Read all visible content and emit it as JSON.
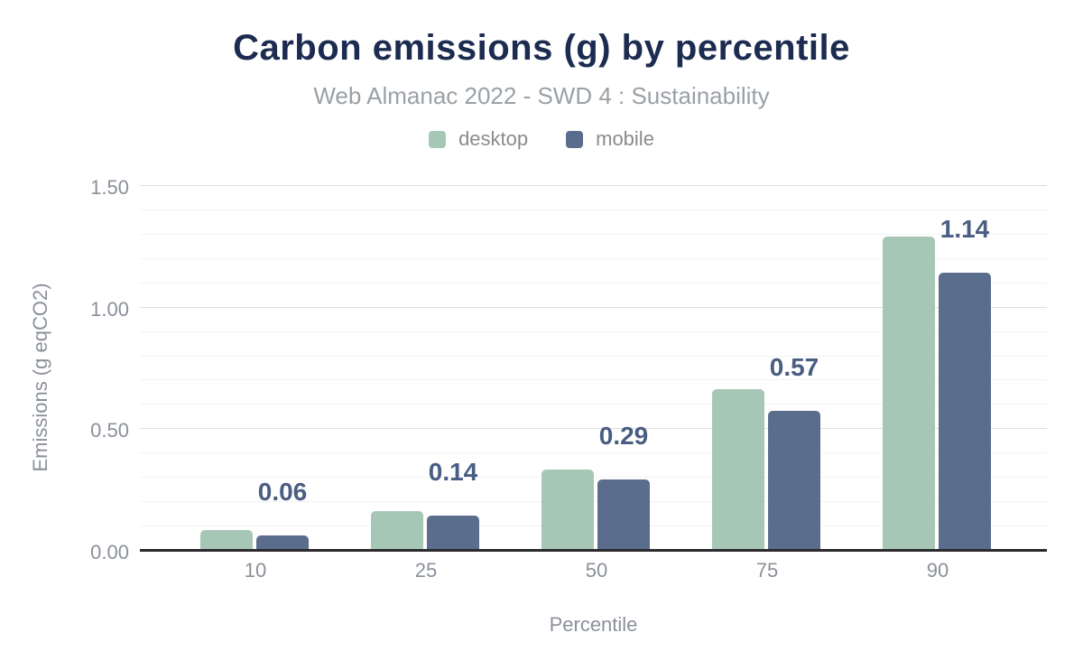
{
  "header": {
    "title": "Carbon emissions (g) by percentile",
    "subtitle": "Web Almanac 2022 - SWD 4 : Sustainability"
  },
  "chart_data": {
    "type": "bar",
    "title": "Carbon emissions (g) by percentile",
    "subtitle": "Web Almanac 2022 - SWD 4 : Sustainability",
    "categories": [
      "10",
      "25",
      "50",
      "75",
      "90"
    ],
    "series": [
      {
        "name": "desktop",
        "color": "#a7c7b6",
        "values": [
          0.08,
          0.16,
          0.33,
          0.66,
          1.29
        ]
      },
      {
        "name": "mobile",
        "color": "#5b6d8d",
        "values": [
          0.06,
          0.14,
          0.29,
          0.57,
          1.14
        ]
      }
    ],
    "data_labels": {
      "on_series": "mobile",
      "values": [
        "0.06",
        "0.14",
        "0.29",
        "0.57",
        "1.14"
      ],
      "color": "#4a5d82"
    },
    "xlabel": "Percentile",
    "ylabel": "Emissions (g eqCO2)",
    "ylim": [
      0,
      1.5
    ],
    "yticks": [
      {
        "value": 0.0,
        "label": "0.00"
      },
      {
        "value": 0.5,
        "label": "0.50"
      },
      {
        "value": 1.0,
        "label": "1.00"
      },
      {
        "value": 1.5,
        "label": "1.50"
      }
    ],
    "minor_tick_step": 0.1,
    "grid": "horizontal-only",
    "legend_position": "top"
  },
  "colors": {
    "background": "#ffffff",
    "title": "#1c2b50",
    "subtitle": "#9aa0a6",
    "axis_text": "#8b9099",
    "legend_text": "#8b8b8b",
    "grid_major": "#dde0e5",
    "grid_minor": "#f2f3f5",
    "axis_line": "#2b2b2e",
    "desktop_bar": "#a7c7b6",
    "mobile_bar": "#5b6d8d",
    "value_label": "#4a5d82"
  }
}
